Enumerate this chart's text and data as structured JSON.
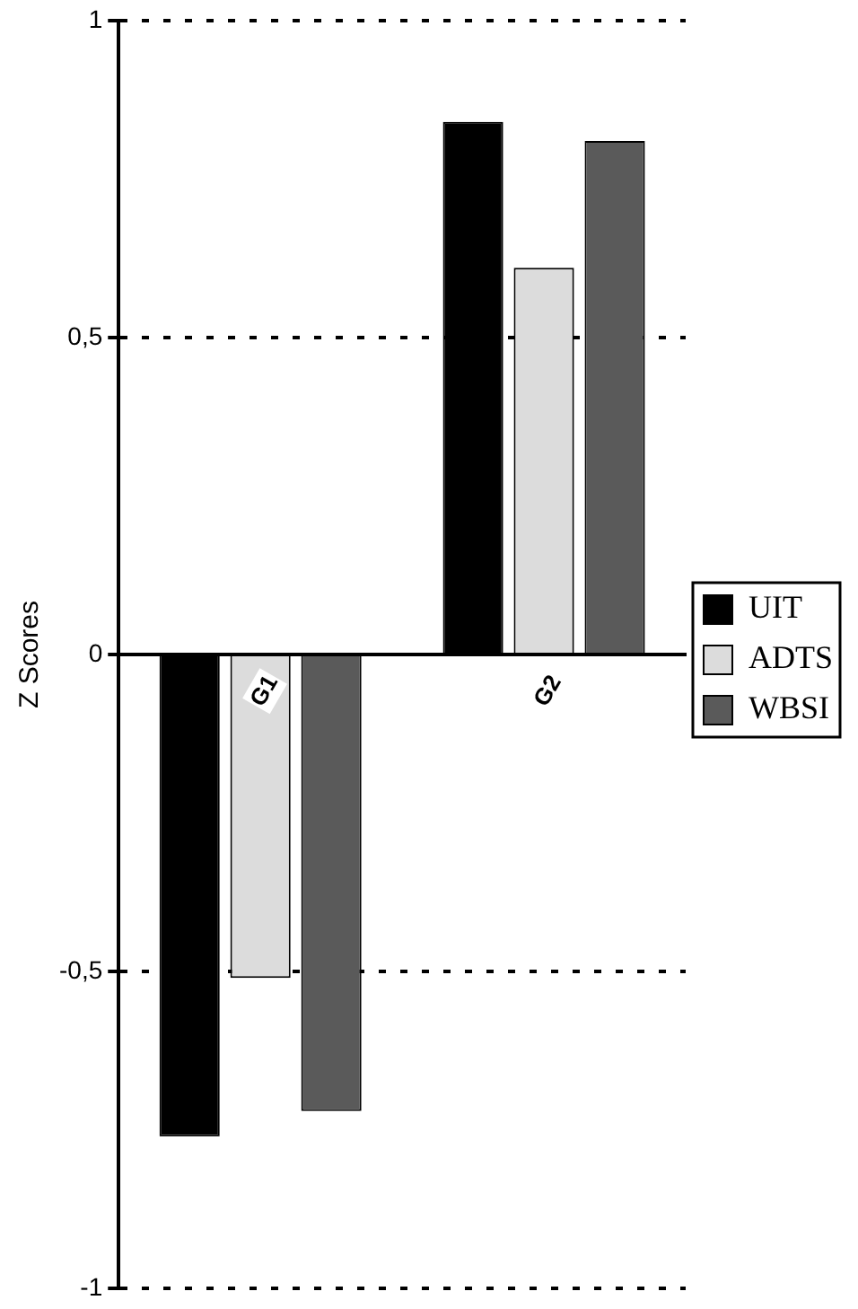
{
  "chart_data": {
    "type": "bar",
    "ylabel": "Z Scores",
    "categories": [
      "G1",
      "G2"
    ],
    "series": [
      {
        "name": "UIT",
        "color": "#000000",
        "values": [
          -0.76,
          0.84
        ]
      },
      {
        "name": "ADTS",
        "color": "#dcdcdc",
        "values": [
          -0.51,
          0.61
        ]
      },
      {
        "name": "WBSI",
        "color": "#5a5a5a",
        "values": [
          -0.72,
          0.81
        ]
      }
    ],
    "ylim": [
      -1,
      1
    ],
    "yticks": [
      {
        "value": -1,
        "label": "-1"
      },
      {
        "value": -0.5,
        "label": "-0,5"
      },
      {
        "value": 0,
        "label": "0"
      },
      {
        "value": 0.5,
        "label": "0,5"
      },
      {
        "value": 1,
        "label": "1"
      }
    ],
    "grid": "y",
    "legend": "right"
  }
}
